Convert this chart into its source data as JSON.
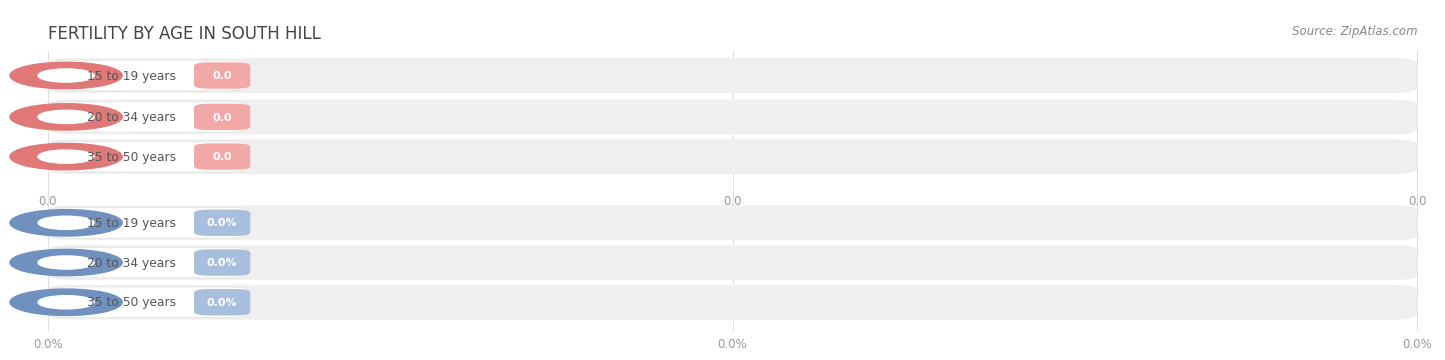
{
  "title": "FERTILITY BY AGE IN SOUTH HILL",
  "source_text": "Source: ZipAtlas.com",
  "top_section": {
    "categories": [
      "15 to 19 years",
      "20 to 34 years",
      "35 to 50 years"
    ],
    "values": [
      0.0,
      0.0,
      0.0
    ],
    "bar_color": "#f2a8a6",
    "dot_color": "#e07878",
    "tick_labels": [
      "0.0",
      "0.0",
      "0.0"
    ]
  },
  "bottom_section": {
    "categories": [
      "15 to 19 years",
      "20 to 34 years",
      "35 to 50 years"
    ],
    "values": [
      0.0,
      0.0,
      0.0
    ],
    "bar_color": "#a8bedd",
    "dot_color": "#7090c0",
    "tick_labels": [
      "0.0%",
      "0.0%",
      "0.0%"
    ]
  },
  "bar_bg_color": "#efefef",
  "fig_width": 14.06,
  "fig_height": 3.31,
  "title_color": "#444444",
  "source_color": "#888888",
  "label_color": "#555555",
  "grid_color": "#dddddd"
}
